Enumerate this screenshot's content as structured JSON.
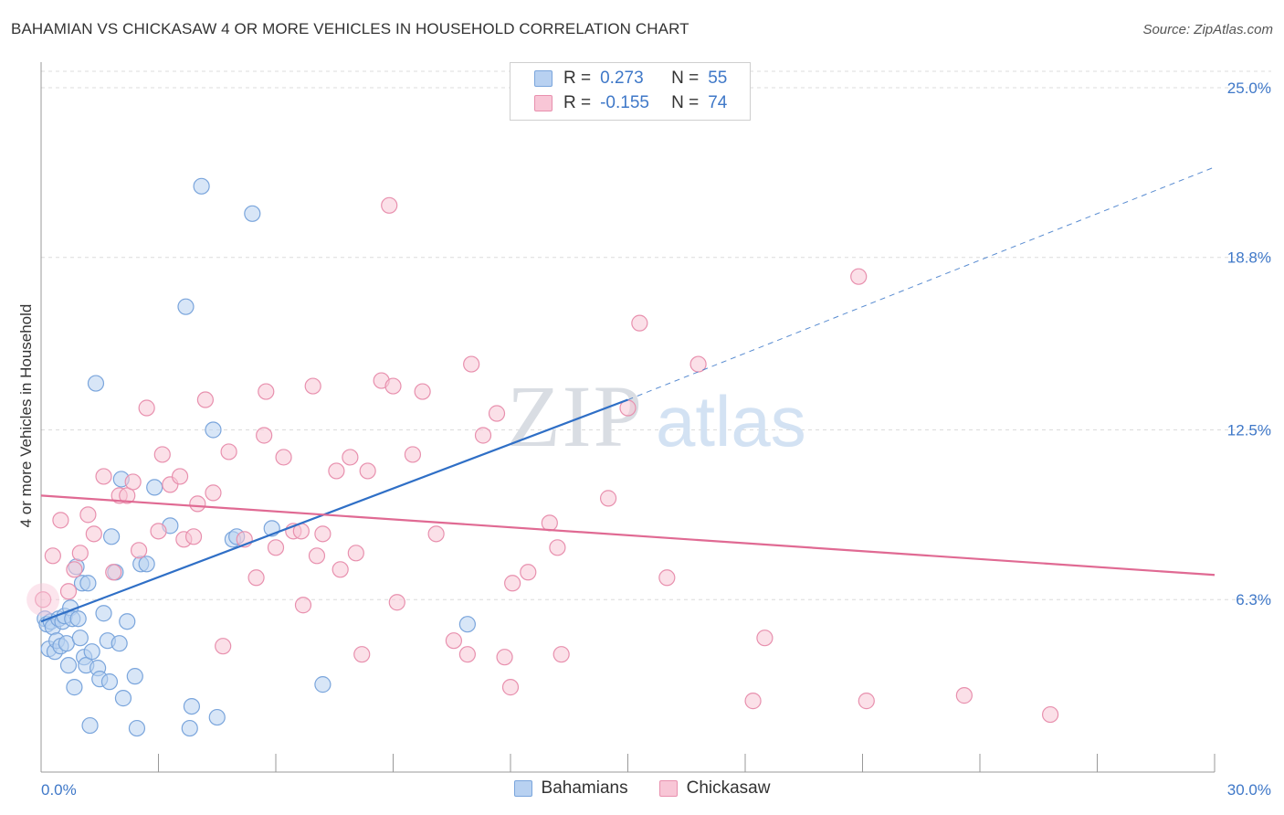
{
  "title": "BAHAMIAN VS CHICKASAW 4 OR MORE VEHICLES IN HOUSEHOLD CORRELATION CHART",
  "source": "Source: ZipAtlas.com",
  "watermark": {
    "zip": "ZIP",
    "atlas": "atlas"
  },
  "legend": {
    "rows": [
      {
        "r_label": "R =",
        "r_value": "0.273",
        "n_label": "N =",
        "n_value": "55",
        "fill": "#b8d1f1",
        "stroke": "#7aa5dc"
      },
      {
        "r_label": "R =",
        "r_value": "-0.155",
        "n_label": "N =",
        "n_value": "74",
        "fill": "#f8c6d6",
        "stroke": "#e890ae"
      }
    ]
  },
  "bottom_legend": [
    {
      "name": "Bahamians",
      "fill": "#b8d1f1",
      "stroke": "#7aa5dc"
    },
    {
      "name": "Chickasaw",
      "fill": "#f8c6d6",
      "stroke": "#e890ae"
    }
  ],
  "chart_data": {
    "type": "scatter",
    "title": "BAHAMIAN VS CHICKASAW 4 OR MORE VEHICLES IN HOUSEHOLD CORRELATION CHART",
    "xlabel": "",
    "ylabel": "4 or more Vehicles in Household",
    "xlim": [
      0,
      30
    ],
    "ylim": [
      0,
      25.6
    ],
    "x_tick_labels": [
      "0.0%",
      "30.0%"
    ],
    "y_ticks": [
      6.3,
      12.5,
      18.8,
      25.0
    ],
    "y_tick_labels": [
      "6.3%",
      "12.5%",
      "18.8%",
      "25.0%"
    ],
    "grid": true,
    "legend_placement": "top-center",
    "colors": {
      "bahamians": "#3f78c8",
      "chickasaw": "#e06a93"
    },
    "series": [
      {
        "name": "Bahamians",
        "fill": "#b8d1f1",
        "stroke": "#7aa5dc",
        "line_color": "#2f6fc6",
        "trend": {
          "x": [
            0,
            15
          ],
          "y": [
            5.5,
            13.6
          ],
          "dashed_extension": {
            "x": [
              15,
              30
            ],
            "y": [
              13.6,
              22.1
            ]
          }
        },
        "points": [
          [
            0.1,
            5.6
          ],
          [
            0.15,
            5.4
          ],
          [
            0.2,
            4.5
          ],
          [
            0.25,
            5.5
          ],
          [
            0.3,
            5.3
          ],
          [
            0.35,
            4.4
          ],
          [
            0.4,
            4.8
          ],
          [
            0.45,
            5.6
          ],
          [
            0.5,
            4.6
          ],
          [
            0.55,
            5.5
          ],
          [
            0.6,
            5.7
          ],
          [
            0.65,
            4.7
          ],
          [
            0.7,
            3.9
          ],
          [
            0.75,
            6.0
          ],
          [
            0.8,
            5.6
          ],
          [
            0.85,
            3.1
          ],
          [
            0.9,
            7.5
          ],
          [
            0.95,
            5.6
          ],
          [
            1.0,
            4.9
          ],
          [
            1.05,
            6.9
          ],
          [
            1.1,
            4.2
          ],
          [
            1.15,
            3.9
          ],
          [
            1.2,
            6.9
          ],
          [
            1.25,
            1.7
          ],
          [
            1.3,
            4.4
          ],
          [
            1.4,
            14.2
          ],
          [
            1.45,
            3.8
          ],
          [
            1.5,
            3.4
          ],
          [
            1.6,
            5.8
          ],
          [
            1.7,
            4.8
          ],
          [
            1.75,
            3.3
          ],
          [
            1.8,
            8.6
          ],
          [
            1.9,
            7.3
          ],
          [
            2.0,
            4.7
          ],
          [
            2.05,
            10.7
          ],
          [
            2.1,
            2.7
          ],
          [
            2.2,
            5.5
          ],
          [
            2.4,
            3.5
          ],
          [
            2.45,
            1.6
          ],
          [
            2.55,
            7.6
          ],
          [
            2.7,
            7.6
          ],
          [
            2.9,
            10.4
          ],
          [
            3.3,
            9.0
          ],
          [
            3.7,
            17.0
          ],
          [
            3.8,
            1.6
          ],
          [
            3.85,
            2.4
          ],
          [
            4.1,
            21.4
          ],
          [
            4.4,
            12.5
          ],
          [
            4.5,
            2.0
          ],
          [
            4.9,
            8.5
          ],
          [
            5.0,
            8.6
          ],
          [
            5.4,
            20.4
          ],
          [
            5.9,
            8.9
          ],
          [
            7.2,
            3.2
          ],
          [
            10.9,
            5.4
          ]
        ]
      },
      {
        "name": "Chickasaw",
        "fill": "#f8c6d6",
        "stroke": "#e890ae",
        "line_color": "#e06a93",
        "trend": {
          "x": [
            0,
            30
          ],
          "y": [
            10.1,
            7.2
          ]
        },
        "points": [
          [
            0.05,
            6.3
          ],
          [
            0.3,
            7.9
          ],
          [
            0.5,
            9.2
          ],
          [
            0.7,
            6.6
          ],
          [
            0.85,
            7.4
          ],
          [
            1.0,
            8.0
          ],
          [
            1.2,
            9.4
          ],
          [
            1.35,
            8.7
          ],
          [
            1.6,
            10.8
          ],
          [
            1.85,
            7.3
          ],
          [
            2.0,
            10.1
          ],
          [
            2.2,
            10.1
          ],
          [
            2.35,
            10.6
          ],
          [
            2.5,
            8.1
          ],
          [
            2.7,
            13.3
          ],
          [
            3.0,
            8.8
          ],
          [
            3.1,
            11.6
          ],
          [
            3.3,
            10.5
          ],
          [
            3.55,
            10.8
          ],
          [
            3.65,
            8.5
          ],
          [
            3.9,
            8.6
          ],
          [
            4.0,
            9.8
          ],
          [
            4.2,
            13.6
          ],
          [
            4.4,
            10.2
          ],
          [
            4.65,
            4.6
          ],
          [
            4.8,
            11.7
          ],
          [
            5.2,
            8.5
          ],
          [
            5.5,
            7.1
          ],
          [
            5.7,
            12.3
          ],
          [
            5.75,
            13.9
          ],
          [
            6.0,
            8.2
          ],
          [
            6.2,
            11.5
          ],
          [
            6.45,
            8.8
          ],
          [
            6.65,
            8.8
          ],
          [
            6.7,
            6.1
          ],
          [
            6.95,
            14.1
          ],
          [
            7.05,
            7.9
          ],
          [
            7.2,
            8.7
          ],
          [
            7.55,
            11.0
          ],
          [
            7.65,
            7.4
          ],
          [
            7.9,
            11.5
          ],
          [
            8.05,
            8.0
          ],
          [
            8.2,
            4.3
          ],
          [
            8.35,
            11.0
          ],
          [
            8.7,
            14.3
          ],
          [
            8.9,
            20.7
          ],
          [
            9.0,
            14.1
          ],
          [
            9.1,
            6.2
          ],
          [
            9.5,
            11.6
          ],
          [
            9.75,
            13.9
          ],
          [
            10.1,
            8.7
          ],
          [
            10.55,
            4.8
          ],
          [
            10.9,
            4.3
          ],
          [
            11.0,
            14.9
          ],
          [
            11.3,
            12.3
          ],
          [
            11.65,
            13.1
          ],
          [
            11.85,
            4.2
          ],
          [
            12.0,
            3.1
          ],
          [
            12.05,
            6.9
          ],
          [
            12.45,
            7.3
          ],
          [
            13.0,
            9.1
          ],
          [
            13.2,
            8.2
          ],
          [
            13.3,
            4.3
          ],
          [
            14.5,
            10.0
          ],
          [
            15.0,
            13.3
          ],
          [
            15.3,
            16.4
          ],
          [
            16.0,
            7.1
          ],
          [
            16.8,
            14.9
          ],
          [
            18.2,
            2.6
          ],
          [
            18.5,
            4.9
          ],
          [
            20.9,
            18.1
          ],
          [
            21.1,
            2.6
          ],
          [
            23.6,
            2.8
          ],
          [
            25.8,
            2.1
          ]
        ]
      }
    ]
  }
}
